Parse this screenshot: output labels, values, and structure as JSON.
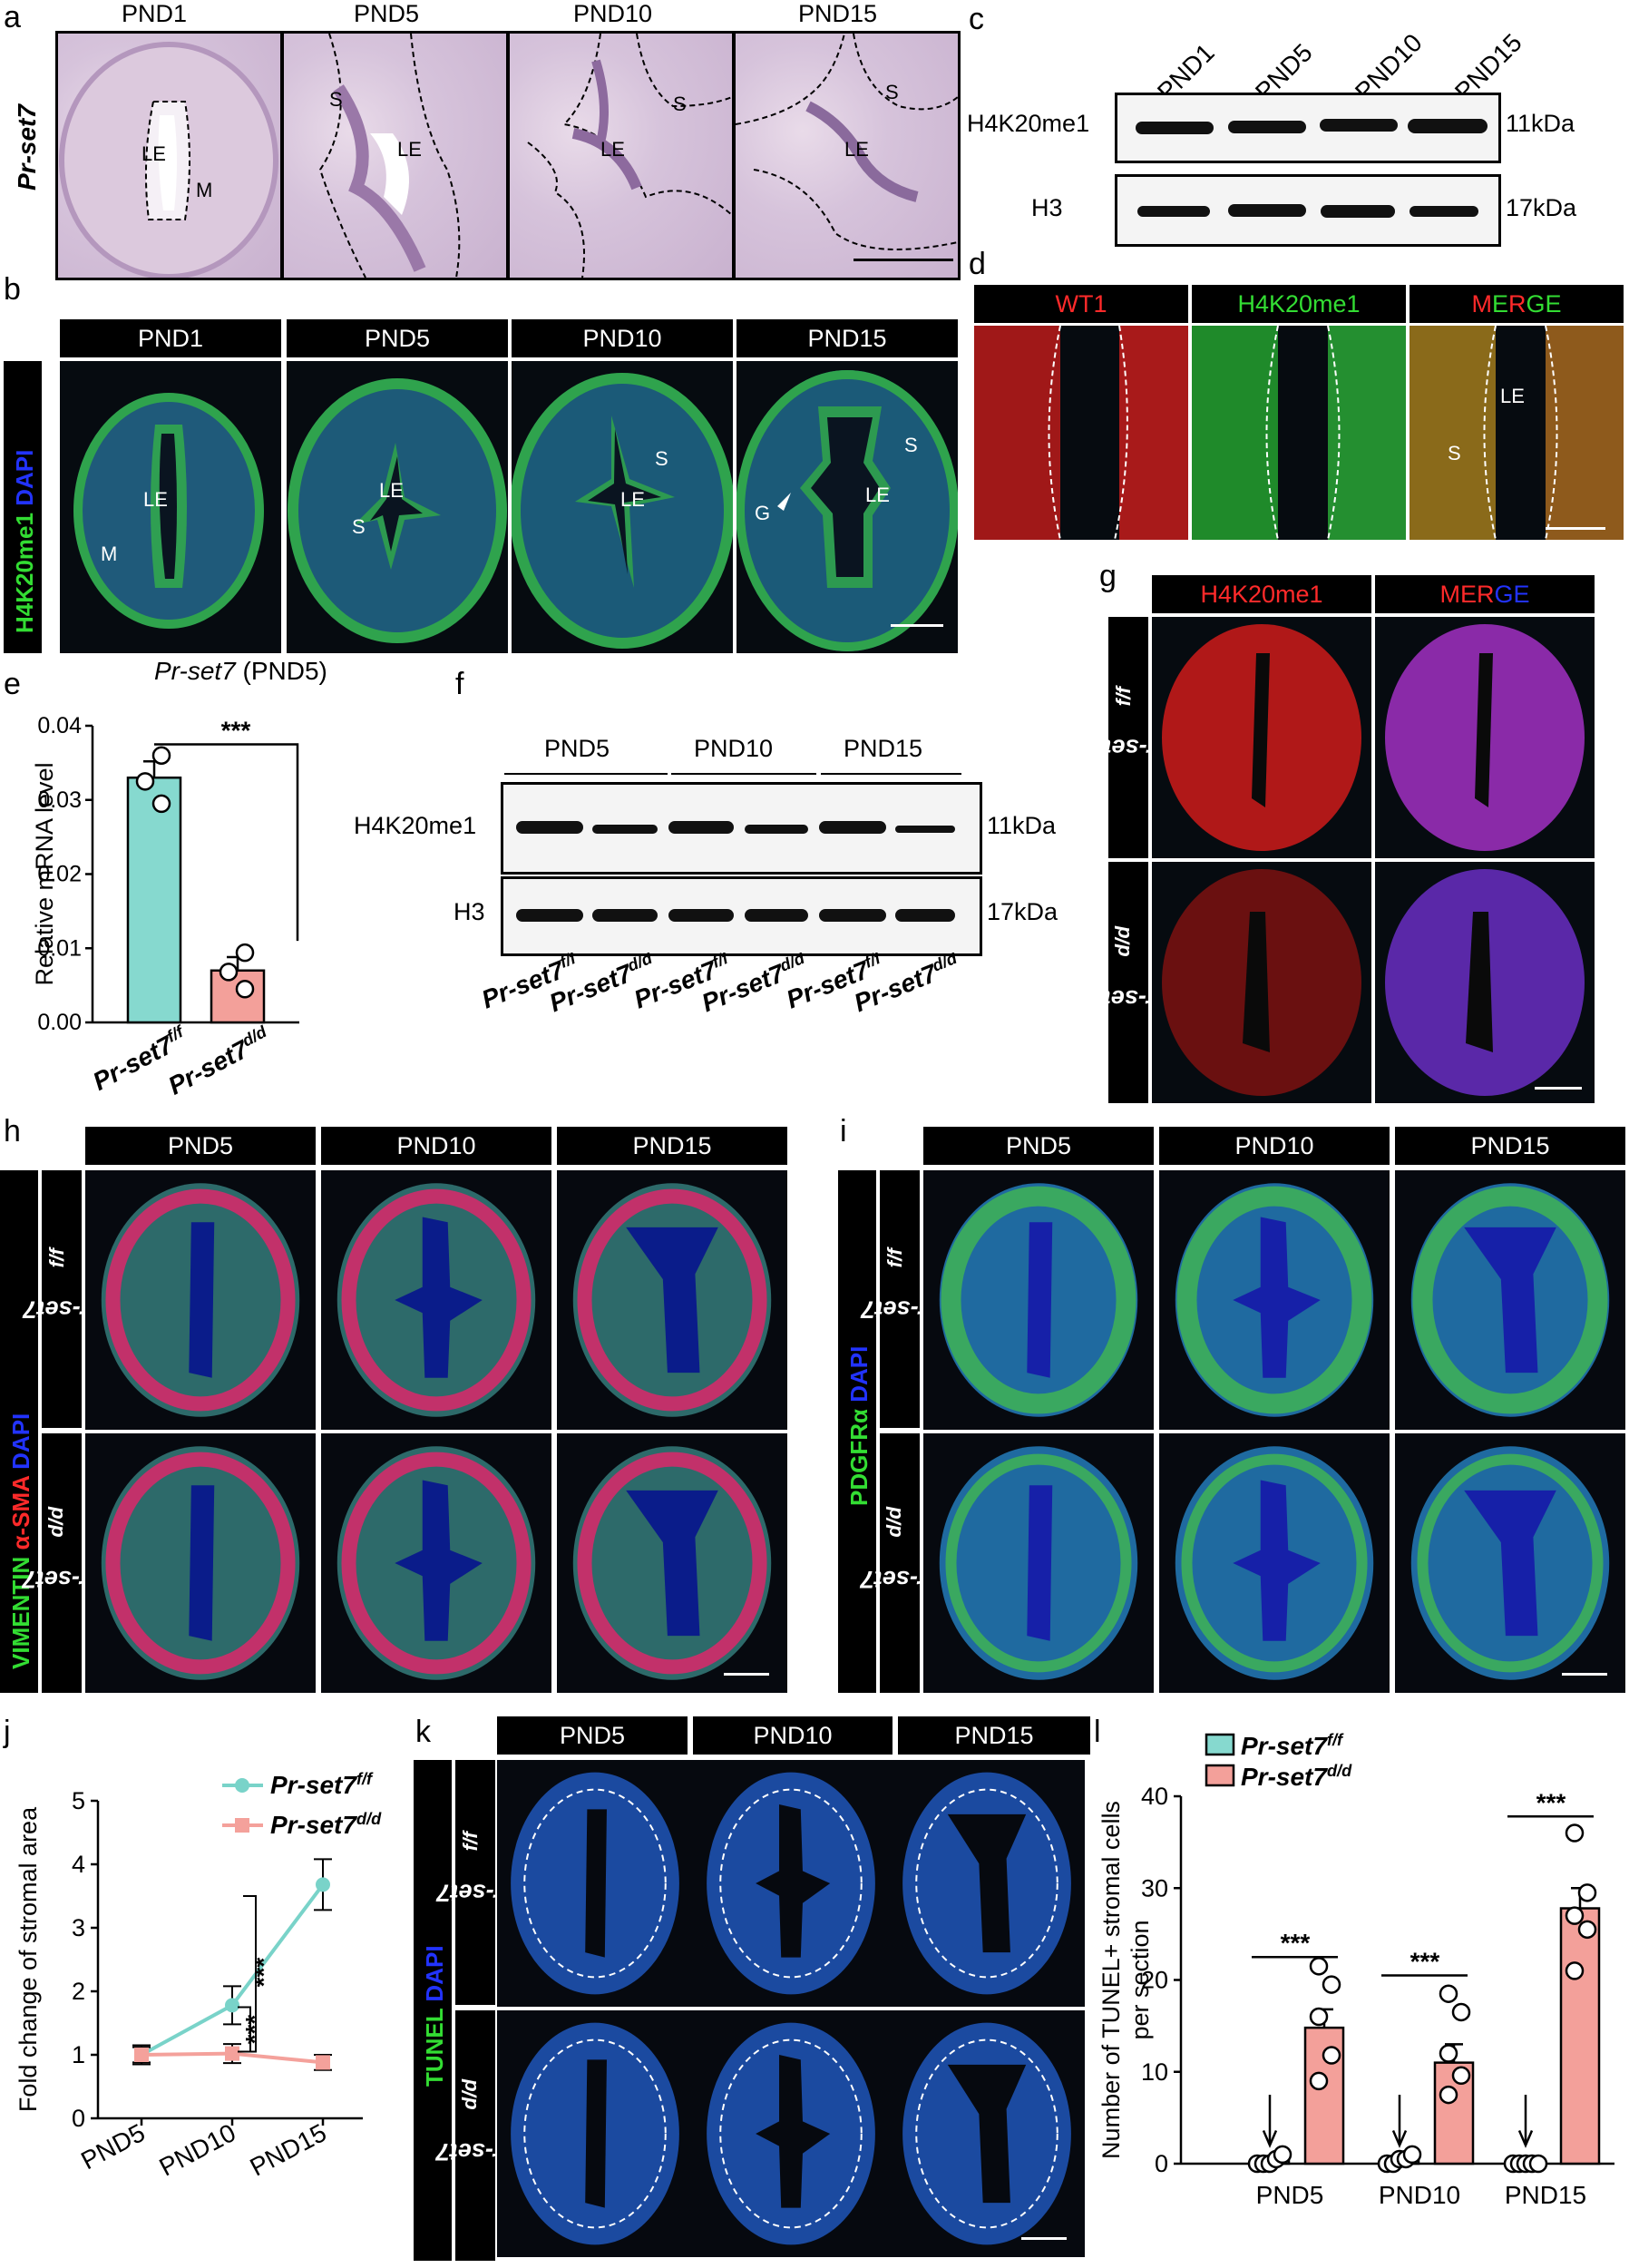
{
  "panels": {
    "a": {
      "letter": "a",
      "gene": "Pr-set7",
      "timepoints": [
        "PND1",
        "PND5",
        "PND10",
        "PND15"
      ],
      "labels": {
        "le": "LE",
        "m": "M",
        "s": "S"
      }
    },
    "b": {
      "letter": "b",
      "timepoints": [
        "PND1",
        "PND5",
        "PND10",
        "PND15"
      ],
      "stain_green": "H4K20me1",
      "stain_blue": "DAPI",
      "labels": {
        "le": "LE",
        "m": "M",
        "s": "S",
        "g": "G"
      }
    },
    "c": {
      "letter": "c",
      "timepoints": [
        "PND1",
        "PND5",
        "PND10",
        "PND15"
      ],
      "rows": [
        {
          "protein": "H4K20me1",
          "size": "11kDa"
        },
        {
          "protein": "H3",
          "size": "17kDa"
        }
      ]
    },
    "d": {
      "letter": "d",
      "channels": [
        "WT1",
        "H4K20me1",
        "MERGE"
      ],
      "merge_letters": [
        "M",
        "E",
        "R",
        "G",
        "E"
      ],
      "labels": {
        "le": "LE",
        "s": "S"
      }
    },
    "e": {
      "letter": "e",
      "title_gene": "Pr-set7",
      "title_suffix": "(PND5)",
      "ylabel": "Relative mRNA level",
      "significance": "***"
    },
    "f": {
      "letter": "f",
      "groups": [
        "PND5",
        "PND10",
        "PND15"
      ],
      "rows": [
        {
          "protein": "H4K20me1",
          "size": "11kDa"
        },
        {
          "protein": "H3",
          "size": "17kDa"
        }
      ],
      "lanes": [
        "f/f",
        "d/d",
        "f/f",
        "d/d",
        "f/f",
        "d/d"
      ]
    },
    "g": {
      "letter": "g",
      "channels": [
        "H4K20me1",
        "MERGE"
      ],
      "merge_letters": [
        "M",
        "E",
        "R",
        "G",
        "E"
      ]
    },
    "h": {
      "letter": "h",
      "timepoints": [
        "PND5",
        "PND10",
        "PND15"
      ],
      "stains": [
        "VIMENTIN",
        "α-SMA",
        "DAPI"
      ]
    },
    "i": {
      "letter": "i",
      "timepoints": [
        "PND5",
        "PND10",
        "PND15"
      ],
      "stains": [
        "PDGFRα",
        "DAPI"
      ]
    },
    "j": {
      "letter": "j",
      "significance": [
        "***",
        "***"
      ]
    },
    "k": {
      "letter": "k",
      "timepoints": [
        "PND5",
        "PND10",
        "PND15"
      ],
      "stains": [
        "TUNEL",
        "DAPI"
      ]
    },
    "l": {
      "letter": "l",
      "significance": [
        "***",
        "***",
        "***"
      ]
    }
  },
  "genotype": {
    "base": "Pr-set7",
    "flox": "f/f",
    "deleted": "d/d"
  },
  "colors": {
    "flox": "#86d9cf",
    "deleted": "#f3a09a",
    "flox_line": "#79d3c9",
    "deleted_line": "#f4a19b",
    "merge_red": "#ff2a2a",
    "merge_green": "#33dd33",
    "merge_blue": "#2233ff"
  },
  "chart_data": [
    {
      "panel": "e",
      "type": "bar",
      "categories": [
        "Pr-set7 f/f",
        "Pr-set7 d/d"
      ],
      "values": [
        0.033,
        0.007
      ],
      "errors": [
        0.0022,
        0.0018
      ],
      "points": [
        [
          0.036,
          0.0325,
          0.0295
        ],
        [
          0.0094,
          0.0068,
          0.0045
        ]
      ],
      "ylabel": "Relative mRNA level",
      "ylim": [
        0,
        0.04
      ],
      "yticks": [
        "0.00",
        "0.01",
        "0.02",
        "0.03",
        "0.04"
      ],
      "ytick_values": [
        0,
        0.01,
        0.02,
        0.03,
        0.04
      ]
    },
    {
      "panel": "j",
      "type": "line",
      "x": [
        "PND5",
        "PND10",
        "PND15"
      ],
      "ylabel": "Fold change of stromal area",
      "ylim": [
        0,
        5
      ],
      "yticks": [
        "0",
        "1",
        "2",
        "3",
        "4",
        "5"
      ],
      "series": [
        {
          "name": "Pr-set7 f/f",
          "values": [
            1.0,
            1.78,
            3.68
          ],
          "errors": [
            0.15,
            0.3,
            0.4
          ]
        },
        {
          "name": "Pr-set7 d/d",
          "values": [
            1.0,
            1.02,
            0.88
          ],
          "errors": [
            0.12,
            0.15,
            0.12
          ]
        }
      ],
      "legend": "top-right"
    },
    {
      "panel": "l",
      "type": "bar",
      "categories": [
        "PND5",
        "PND10",
        "PND15"
      ],
      "ylabel": "Number of TUNEL+ stromal cells per section",
      "ylim": [
        0,
        40
      ],
      "yticks": [
        "0",
        "10",
        "20",
        "30",
        "40"
      ],
      "series": [
        {
          "name": "Pr-set7 f/f",
          "values": [
            0.3,
            0.3,
            0.0
          ],
          "errors": [
            0.3,
            0.3,
            0.0
          ],
          "points": [
            [
              0,
              0,
              0,
              0.5,
              1
            ],
            [
              0,
              0,
              0.5,
              0.5,
              1
            ],
            [
              0,
              0,
              0,
              0,
              0
            ]
          ]
        },
        {
          "name": "Pr-set7 d/d",
          "values": [
            14.8,
            11.0,
            27.8
          ],
          "errors": [
            2.0,
            2.0,
            2.2
          ],
          "points": [
            [
              21.5,
              19.5,
              16,
              11.8,
              9
            ],
            [
              18.5,
              16.5,
              12,
              9.6,
              7.5
            ],
            [
              36,
              29.5,
              27,
              25.5,
              21
            ]
          ]
        }
      ],
      "legend": "top-left"
    }
  ]
}
